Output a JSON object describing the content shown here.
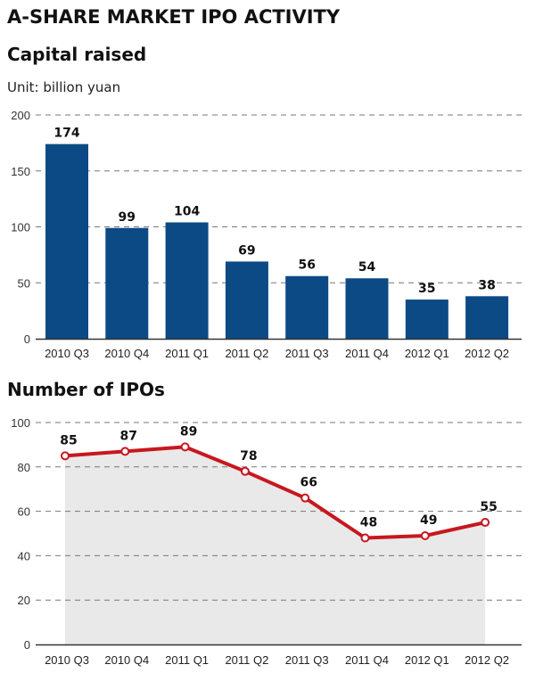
{
  "title": "A-SHARE MARKET IPO ACTIVITY",
  "chart_data": [
    {
      "type": "bar",
      "title": "Capital raised",
      "subtitle": "Unit: billion yuan",
      "categories": [
        "2010 Q3",
        "2010 Q4",
        "2011 Q1",
        "2011 Q2",
        "2011 Q3",
        "2011 Q4",
        "2012 Q1",
        "2012 Q2"
      ],
      "values": [
        174,
        99,
        104,
        69,
        56,
        54,
        35,
        38
      ],
      "ylim": [
        0,
        200
      ],
      "yticks": [
        0,
        50,
        100,
        150,
        200
      ],
      "grid": true,
      "color": "#0b4a84"
    },
    {
      "type": "area",
      "title": "Number of IPOs",
      "categories": [
        "2010 Q3",
        "2010 Q4",
        "2011 Q1",
        "2011 Q2",
        "2011 Q3",
        "2011 Q4",
        "2012 Q1",
        "2012 Q2"
      ],
      "values": [
        85,
        87,
        89,
        78,
        66,
        48,
        49,
        55
      ],
      "ylim": [
        0,
        100
      ],
      "yticks": [
        0,
        20,
        40,
        60,
        80,
        100
      ],
      "grid": true,
      "line_color": "#c8171e",
      "fill_color": "#e9e9e9"
    }
  ]
}
